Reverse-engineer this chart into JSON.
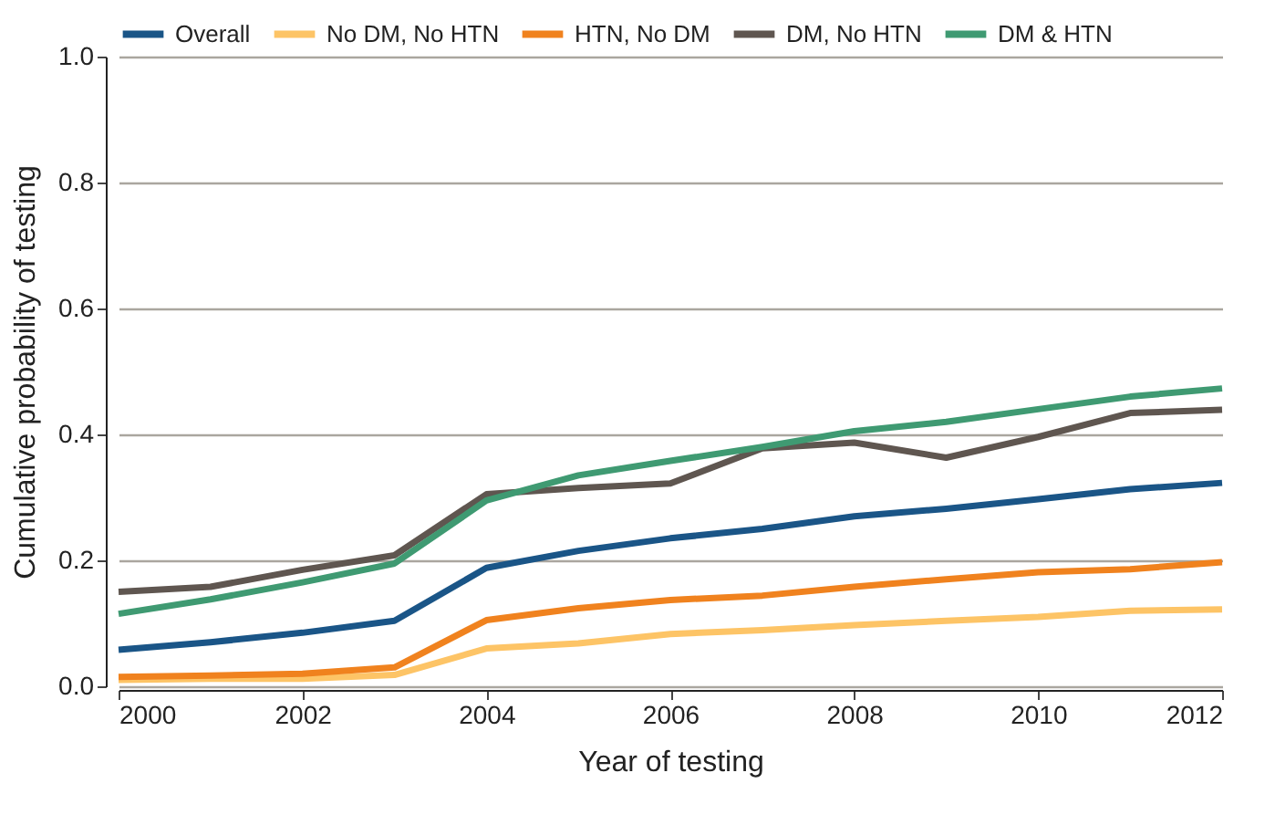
{
  "chart_data": {
    "type": "line",
    "xlabel": "Year of testing",
    "ylabel": "Cumulative probability of testing",
    "x": [
      2000,
      2001,
      2002,
      2003,
      2004,
      2005,
      2006,
      2007,
      2008,
      2009,
      2010,
      2011,
      2012
    ],
    "series": [
      {
        "name": "Overall",
        "color": "#1a5587",
        "values": [
          0.058,
          0.07,
          0.085,
          0.104,
          0.188,
          0.215,
          0.235,
          0.25,
          0.27,
          0.282,
          0.297,
          0.313,
          0.323
        ]
      },
      {
        "name": "No DM, No HTN",
        "color": "#fdc466",
        "values": [
          0.01,
          0.012,
          0.012,
          0.018,
          0.06,
          0.068,
          0.083,
          0.089,
          0.097,
          0.104,
          0.11,
          0.12,
          0.122
        ]
      },
      {
        "name": "HTN, No DM",
        "color": "#f0821e",
        "values": [
          0.015,
          0.017,
          0.02,
          0.03,
          0.105,
          0.124,
          0.137,
          0.144,
          0.158,
          0.17,
          0.181,
          0.186,
          0.197
        ]
      },
      {
        "name": "DM, No HTN",
        "color": "#5f5650",
        "values": [
          0.15,
          0.158,
          0.185,
          0.208,
          0.305,
          0.315,
          0.322,
          0.378,
          0.387,
          0.363,
          0.396,
          0.434,
          0.439
        ]
      },
      {
        "name": "DM & HTN",
        "color": "#3f9a72",
        "values": [
          0.115,
          0.138,
          0.165,
          0.195,
          0.295,
          0.335,
          0.358,
          0.38,
          0.405,
          0.42,
          0.44,
          0.46,
          0.473
        ]
      }
    ],
    "xlim": [
      2000,
      2012
    ],
    "xticks": [
      2000,
      2002,
      2004,
      2006,
      2008,
      2010,
      2012
    ],
    "ylim": [
      0,
      1.0
    ],
    "yticks": [
      {
        "value": 0,
        "label": "0.0"
      },
      0.2,
      0.4,
      0.6,
      0.8,
      {
        "value": 1.0,
        "label": "1.0"
      }
    ],
    "grid": "y",
    "legend": "top",
    "marker": "none",
    "line_style": "solid"
  }
}
